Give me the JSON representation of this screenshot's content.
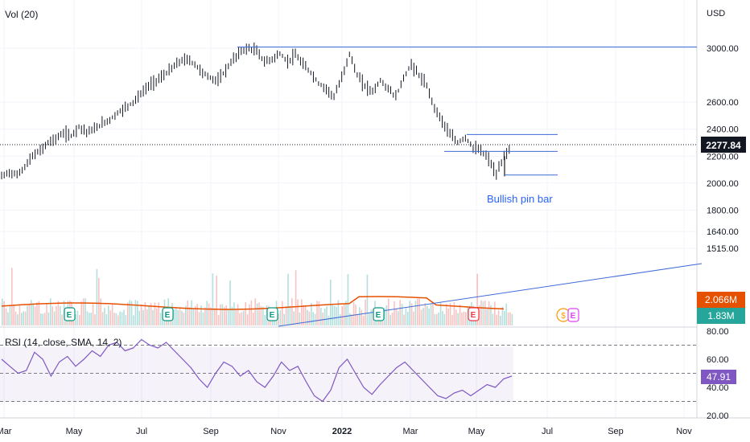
{
  "chart_data": {
    "type": "bar",
    "currency": "USD",
    "volume_indicator": "Vol (20)",
    "rsi_indicator": "RSI (14, close, SMA, 14, 2)",
    "x_ticks": [
      "Mar",
      "May",
      "Jul",
      "Sep",
      "Nov",
      "2022",
      "Mar",
      "May",
      "Jul",
      "Sep",
      "Nov"
    ],
    "price_ticks": [
      "3000.00",
      "2600.00",
      "2400.00",
      "2200.00",
      "2000.00",
      "1800.00",
      "1640.00",
      "1515.00"
    ],
    "rsi_ticks": [
      "80.00",
      "60.00",
      "40.00",
      "20.00"
    ],
    "last_price": "2277.84",
    "volume_ma_label": "2.066M",
    "volume_label": "1.83M",
    "rsi_value": "47.91",
    "annotation": "Bullish pin bar",
    "earnings_marker": "E",
    "dividend_marker": "$",
    "price_range": [
      1450,
      3120
    ],
    "rsi_range": [
      20,
      80
    ],
    "rsi_bands": [
      70,
      50,
      30
    ],
    "price_series": [
      2050,
      2080,
      2060,
      2120,
      2200,
      2240,
      2300,
      2330,
      2370,
      2350,
      2420,
      2380,
      2400,
      2440,
      2470,
      2520,
      2560,
      2600,
      2660,
      2720,
      2760,
      2800,
      2850,
      2900,
      2920,
      2880,
      2820,
      2780,
      2760,
      2840,
      2920,
      2980,
      3000,
      2980,
      2900,
      2920,
      2960,
      2900,
      2950,
      2880,
      2820,
      2740,
      2700,
      2640,
      2780,
      2960,
      2800,
      2720,
      2680,
      2760,
      2700,
      2640,
      2780,
      2880,
      2800,
      2720,
      2560,
      2460,
      2360,
      2300,
      2340,
      2260,
      2240,
      2180,
      2060,
      2200,
      2278
    ],
    "horizontal_levels": [
      3010,
      2360,
      2235,
      2060
    ],
    "rsi_series": [
      60,
      55,
      50,
      52,
      65,
      60,
      48,
      58,
      62,
      55,
      60,
      66,
      62,
      70,
      72,
      66,
      68,
      74,
      70,
      68,
      72,
      66,
      60,
      54,
      46,
      40,
      50,
      58,
      55,
      48,
      52,
      44,
      40,
      48,
      58,
      52,
      55,
      44,
      34,
      30,
      38,
      54,
      60,
      50,
      40,
      35,
      42,
      48,
      54,
      58,
      52,
      46,
      40,
      34,
      32,
      36,
      38,
      34,
      38,
      42,
      40,
      46,
      48
    ]
  }
}
